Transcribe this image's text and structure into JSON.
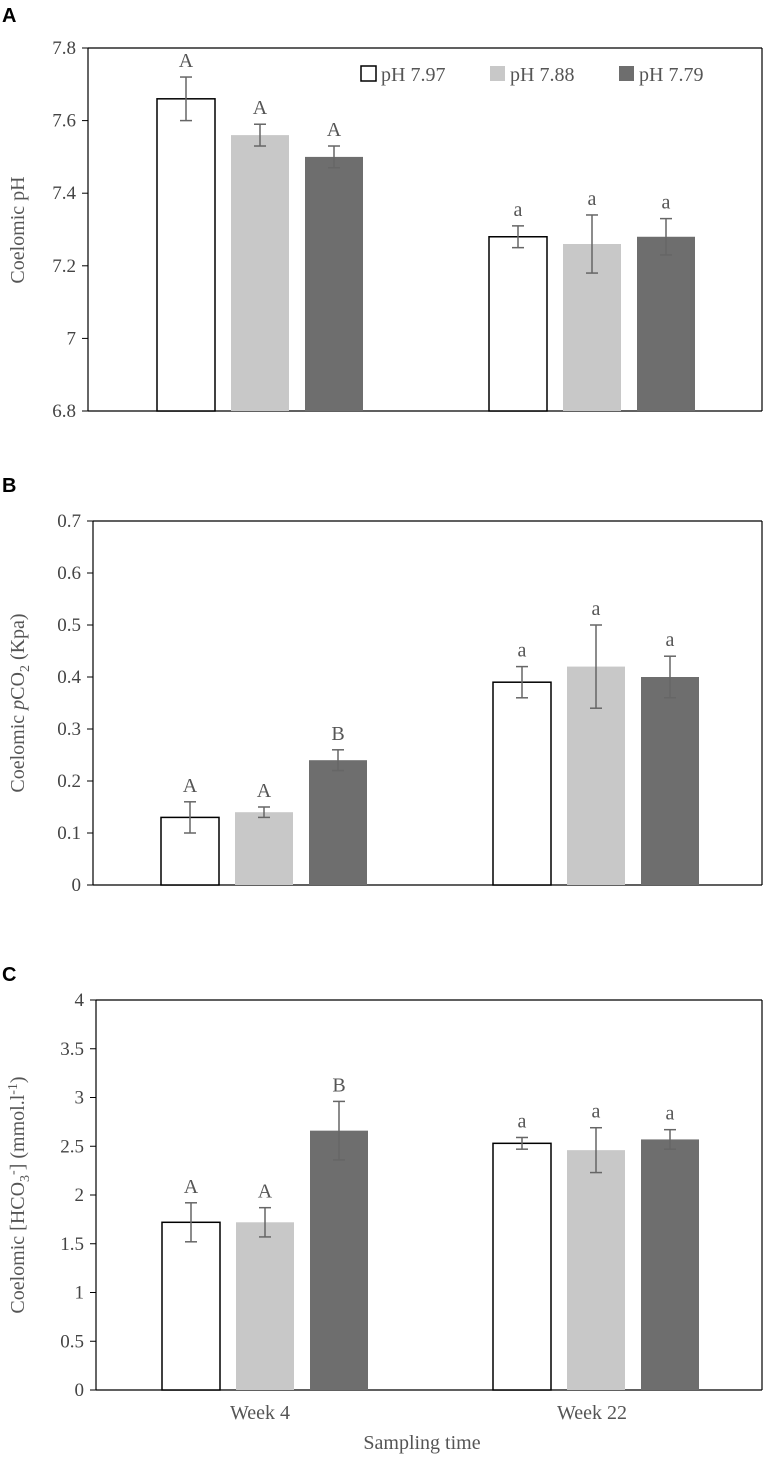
{
  "colors": {
    "series": [
      "#ffffff",
      "#c8c8c8",
      "#6e6e6e"
    ],
    "stroke": [
      "#000000",
      "#c8c8c8",
      "#6e6e6e"
    ],
    "axis": "#000000",
    "error_bar": "#666666"
  },
  "xlabel": "Sampling time",
  "categories": [
    "Week 4",
    "Week 22"
  ],
  "legend": [
    "pH 7.97",
    "pH 7.88",
    "pH 7.79"
  ],
  "chart_data": [
    {
      "type": "bar",
      "panel": "A",
      "ylabel": "Coelomic pH",
      "ylim": [
        6.8,
        7.8
      ],
      "yticks": [
        "6.8",
        "7",
        "7.2",
        "7.4",
        "7.6",
        "7.8"
      ],
      "yticks_values": [
        6.8,
        7.0,
        7.2,
        7.4,
        7.6,
        7.8
      ],
      "legend_placement": "top-right",
      "categories": [
        "Week 4",
        "Week 22"
      ],
      "series": [
        {
          "name": "pH 7.97",
          "values": [
            7.66,
            7.28
          ],
          "errors": [
            0.06,
            0.03
          ],
          "labels": [
            "A",
            "a"
          ]
        },
        {
          "name": "pH 7.88",
          "values": [
            7.56,
            7.26
          ],
          "errors": [
            0.03,
            0.08
          ],
          "labels": [
            "A",
            "a"
          ]
        },
        {
          "name": "pH 7.79",
          "values": [
            7.5,
            7.28
          ],
          "errors": [
            0.03,
            0.05
          ],
          "labels": [
            "A",
            "a"
          ]
        }
      ]
    },
    {
      "type": "bar",
      "panel": "B",
      "ylabel": "Coelomic pCO2 (Kpa)",
      "ylabel_parts": {
        "pre": "Coelomic ",
        "italic": "p",
        "mid": "CO",
        "sub": "2",
        "post": " (Kpa)"
      },
      "ylim": [
        0,
        0.7
      ],
      "yticks": [
        "0",
        "0.1",
        "0.2",
        "0.3",
        "0.4",
        "0.5",
        "0.6",
        "0.7"
      ],
      "yticks_values": [
        0,
        0.1,
        0.2,
        0.3,
        0.4,
        0.5,
        0.6,
        0.7
      ],
      "categories": [
        "Week 4",
        "Week 22"
      ],
      "series": [
        {
          "name": "pH 7.97",
          "values": [
            0.13,
            0.39
          ],
          "errors": [
            0.03,
            0.03
          ],
          "labels": [
            "A",
            "a"
          ]
        },
        {
          "name": "pH 7.88",
          "values": [
            0.14,
            0.42
          ],
          "errors": [
            0.01,
            0.08
          ],
          "labels": [
            "A",
            "a"
          ]
        },
        {
          "name": "pH 7.79",
          "values": [
            0.24,
            0.4
          ],
          "errors": [
            0.02,
            0.04
          ],
          "labels": [
            "B",
            "a"
          ]
        }
      ]
    },
    {
      "type": "bar",
      "panel": "C",
      "ylabel": "Coelomic [HCO3-] (mmol.l-1)",
      "ylabel_parts": {
        "pre": "Coelomic [HCO",
        "sub": "3",
        "sup1": "-",
        "mid": "] (mmol.l",
        "sup2": "-1",
        "post": ")"
      },
      "ylim": [
        0,
        4
      ],
      "yticks": [
        "0",
        "0.5",
        "1",
        "1.5",
        "2",
        "2.5",
        "3",
        "3.5",
        "4"
      ],
      "yticks_values": [
        0,
        0.5,
        1,
        1.5,
        2,
        2.5,
        3,
        3.5,
        4
      ],
      "categories": [
        "Week 4",
        "Week 22"
      ],
      "series": [
        {
          "name": "pH 7.97",
          "values": [
            1.72,
            2.53
          ],
          "errors": [
            0.2,
            0.06
          ],
          "labels": [
            "A",
            "a"
          ]
        },
        {
          "name": "pH 7.88",
          "values": [
            1.72,
            2.46
          ],
          "errors": [
            0.15,
            0.23
          ],
          "labels": [
            "A",
            "a"
          ]
        },
        {
          "name": "pH 7.79",
          "values": [
            2.66,
            2.57
          ],
          "errors": [
            0.3,
            0.1
          ],
          "labels": [
            "B",
            "a"
          ]
        }
      ]
    }
  ]
}
